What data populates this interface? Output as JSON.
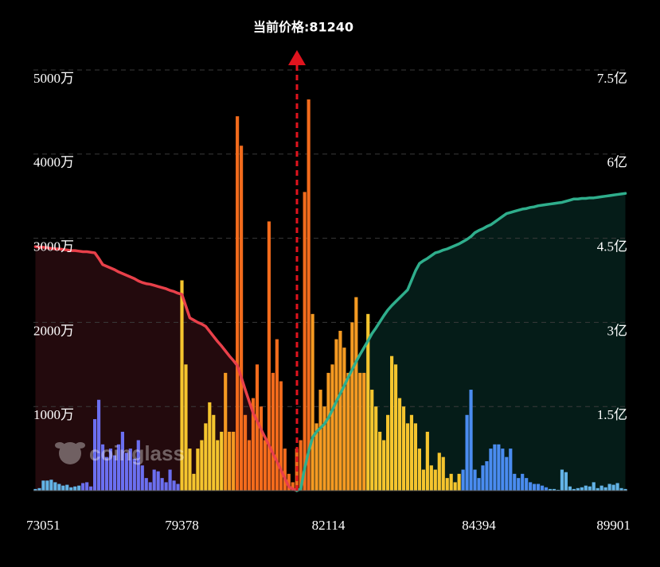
{
  "chart_data": {
    "type": "bar",
    "annotation": "当前价格:81240",
    "watermark": "coinglass",
    "grid": true,
    "ylim": [
      0,
      5000
    ],
    "yticks": [
      {
        "value": 1000,
        "label": "1000万"
      },
      {
        "value": 2000,
        "label": "2000万"
      },
      {
        "value": 3000,
        "label": "3000万"
      },
      {
        "value": 4000,
        "label": "4000万"
      },
      {
        "value": 5000,
        "label": "5000万"
      }
    ],
    "y2lim": [
      0,
      7.5
    ],
    "y2ticks": [
      {
        "value": 1.5,
        "label": "1.5亿"
      },
      {
        "value": 3,
        "label": "3亿"
      },
      {
        "value": 4.5,
        "label": "4.5亿"
      },
      {
        "value": 6,
        "label": "6亿"
      },
      {
        "value": 7.5,
        "label": "7.5亿"
      }
    ],
    "categories": [
      null,
      null,
      "73051",
      null,
      null,
      null,
      null,
      null,
      null,
      null,
      null,
      null,
      null,
      null,
      null,
      null,
      null,
      null,
      null,
      null,
      null,
      null,
      null,
      null,
      null,
      null,
      null,
      null,
      null,
      null,
      null,
      null,
      null,
      null,
      null,
      null,
      null,
      "79378",
      null,
      null,
      null,
      null,
      null,
      null,
      null,
      null,
      null,
      null,
      null,
      null,
      null,
      null,
      null,
      null,
      null,
      null,
      null,
      null,
      null,
      null,
      null,
      null,
      null,
      null,
      null,
      null,
      null,
      null,
      null,
      null,
      null,
      null,
      null,
      null,
      "82114",
      null,
      null,
      null,
      null,
      null,
      null,
      null,
      null,
      null,
      null,
      null,
      null,
      null,
      null,
      null,
      null,
      null,
      null,
      null,
      null,
      null,
      null,
      null,
      null,
      null,
      null,
      null,
      null,
      null,
      null,
      null,
      null,
      null,
      null,
      null,
      null,
      null,
      "84394",
      null,
      null,
      null,
      null,
      null,
      null,
      null,
      null,
      null,
      null,
      null,
      null,
      null,
      null,
      null,
      null,
      null,
      null,
      null,
      null,
      null,
      null,
      null,
      null,
      null,
      null,
      null,
      null,
      null,
      null,
      null,
      null,
      null,
      "89901",
      null,
      null,
      null
    ],
    "series": [
      {
        "type": "bar",
        "values": [
          20,
          30,
          120,
          120,
          130,
          100,
          80,
          60,
          70,
          40,
          50,
          60,
          90,
          100,
          50,
          850,
          1080,
          550,
          400,
          500,
          420,
          550,
          700,
          450,
          500,
          380,
          600,
          300,
          150,
          100,
          250,
          230,
          150,
          100,
          250,
          120,
          80,
          2500,
          1500,
          500,
          200,
          500,
          600,
          800,
          1050,
          900,
          600,
          700,
          1400,
          700,
          700,
          4450,
          4100,
          900,
          600,
          1100,
          1500,
          1000,
          600,
          3200,
          1400,
          1800,
          1300,
          500,
          200,
          100,
          500,
          600,
          3550,
          4650,
          2100,
          800,
          1200,
          1000,
          1400,
          1500,
          1800,
          1900,
          1700,
          1400,
          2000,
          2300,
          1400,
          1400,
          2100,
          1200,
          1000,
          700,
          600,
          900,
          1600,
          1500,
          1100,
          1000,
          800,
          900,
          800,
          500,
          250,
          700,
          300,
          250,
          450,
          400,
          150,
          200,
          100,
          200,
          250,
          900,
          1200,
          250,
          150,
          300,
          350,
          500,
          550,
          550,
          500,
          400,
          500,
          200,
          150,
          200,
          150,
          100,
          80,
          80,
          60,
          40,
          20,
          20,
          10,
          250,
          220,
          50,
          20,
          30,
          40,
          60,
          50,
          100,
          30,
          60,
          40,
          80,
          70,
          90,
          30,
          20
        ],
        "colors": [
          "#63b3e6",
          "#63b3e6",
          "#63b3e6",
          "#63b3e6",
          "#63b3e6",
          "#63b3e6",
          "#63b3e6",
          "#63b3e6",
          "#63b3e6",
          "#63b3e6",
          "#63b3e6",
          "#63b3e6",
          "#6b6ff0",
          "#6b6ff0",
          "#6b6ff0",
          "#6b6ff0",
          "#6b6ff0",
          "#6b6ff0",
          "#6b6ff0",
          "#6b6ff0",
          "#6b6ff0",
          "#6b6ff0",
          "#6b6ff0",
          "#6b6ff0",
          "#6b6ff0",
          "#6b6ff0",
          "#6b6ff0",
          "#6b6ff0",
          "#6b6ff0",
          "#6b6ff0",
          "#6b6ff0",
          "#6b6ff0",
          "#6b6ff0",
          "#6b6ff0",
          "#6b6ff0",
          "#6b6ff0",
          "#6b6ff0",
          "#f5c52e",
          "#f5c52e",
          "#f5c52e",
          "#f5c52e",
          "#f5c52e",
          "#f5c52e",
          "#f5c52e",
          "#f5c52e",
          "#f5c52e",
          "#f5c52e",
          "#f5c52e",
          "#f59a22",
          "#f59a22",
          "#f59a22",
          "#f26b1c",
          "#f26b1c",
          "#f26b1c",
          "#f26b1c",
          "#f26b1c",
          "#f26b1c",
          "#f26b1c",
          "#f26b1c",
          "#f26b1c",
          "#f26b1c",
          "#f26b1c",
          "#f26b1c",
          "#f26b1c",
          "#f26b1c",
          "#f26b1c",
          "#f26b1c",
          "#f26b1c",
          "#f26b1c",
          "#f26b1c",
          "#f59a22",
          "#f59a22",
          "#f59a22",
          "#f59a22",
          "#f59a22",
          "#f59a22",
          "#f59a22",
          "#f59a22",
          "#f59a22",
          "#f59a22",
          "#f59a22",
          "#f59a22",
          "#f59a22",
          "#f59a22",
          "#f5c52e",
          "#f5c52e",
          "#f5c52e",
          "#f5c52e",
          "#f5c52e",
          "#f5c52e",
          "#f5c52e",
          "#f5c52e",
          "#f5c52e",
          "#f5c52e",
          "#f5c52e",
          "#f5c52e",
          "#f5c52e",
          "#f5c52e",
          "#f5c52e",
          "#f5c52e",
          "#f5c52e",
          "#f5c52e",
          "#f5c52e",
          "#f5c52e",
          "#f5c52e",
          "#f5c52e",
          "#f5c52e",
          "#f5c52e",
          "#4a8cf0",
          "#4a8cf0",
          "#4a8cf0",
          "#4a8cf0",
          "#4a8cf0",
          "#4a8cf0",
          "#4a8cf0",
          "#4a8cf0",
          "#4a8cf0",
          "#4a8cf0",
          "#4a8cf0",
          "#4a8cf0",
          "#4a8cf0",
          "#4a8cf0",
          "#4a8cf0",
          "#4a8cf0",
          "#4a8cf0",
          "#4a8cf0",
          "#4a8cf0",
          "#4a8cf0",
          "#4a8cf0",
          "#4a8cf0",
          "#63b3e6",
          "#63b3e6",
          "#63b3e6",
          "#63b3e6",
          "#63b3e6",
          "#63b3e6",
          "#63b3e6",
          "#63b3e6",
          "#63b3e6",
          "#63b3e6",
          "#63b3e6",
          "#63b3e6",
          "#63b3e6",
          "#63b3e6",
          "#63b3e6",
          "#63b3e6",
          "#63b3e6",
          "#63b3e6",
          "#63b3e6",
          "#63b3e6"
        ]
      },
      {
        "type": "line",
        "axis": "y2",
        "color": "#e8404a",
        "fill": "#230a0d",
        "values": [
          4.35,
          4.34,
          4.34,
          4.33,
          4.32,
          4.31,
          4.31,
          4.3,
          4.29,
          4.28,
          4.28,
          4.27,
          4.26,
          4.26,
          4.25,
          4.24,
          4.14,
          4.03,
          4.0,
          3.97,
          3.94,
          3.9,
          3.87,
          3.84,
          3.81,
          3.78,
          3.74,
          3.71,
          3.69,
          3.68,
          3.66,
          3.64,
          3.62,
          3.6,
          3.57,
          3.55,
          3.52,
          3.5,
          3.29,
          3.08,
          3.04,
          3.0,
          2.97,
          2.93,
          2.84,
          2.75,
          2.66,
          2.58,
          2.49,
          2.4,
          2.32,
          2.23,
          2.02,
          1.8,
          1.59,
          1.38,
          1.24,
          1.09,
          0.95,
          0.81,
          0.66,
          0.52,
          0.37,
          0.22,
          0.07,
          0.03,
          0,
          null,
          null,
          null,
          null,
          null,
          null,
          null,
          null,
          null,
          null,
          null,
          null,
          null,
          null,
          null,
          null,
          null,
          null,
          null,
          null,
          null,
          null,
          null,
          null,
          null,
          null,
          null,
          null,
          null,
          null,
          null,
          null,
          null,
          null,
          null,
          null,
          null,
          null,
          null,
          null,
          null,
          null,
          null,
          null,
          null,
          null,
          null,
          null,
          null,
          null,
          null,
          null,
          null,
          null,
          null,
          null,
          null,
          null,
          null,
          null,
          null,
          null,
          null,
          null,
          null,
          null,
          null,
          null,
          null,
          null,
          null,
          null,
          null,
          null,
          null,
          null,
          null,
          null,
          null,
          null,
          null,
          null,
          null
        ]
      },
      {
        "type": "line",
        "axis": "y2",
        "color": "#2fae8c",
        "fill": "#051c18",
        "values": [
          null,
          null,
          null,
          null,
          null,
          null,
          null,
          null,
          null,
          null,
          null,
          null,
          null,
          null,
          null,
          null,
          null,
          null,
          null,
          null,
          null,
          null,
          null,
          null,
          null,
          null,
          null,
          null,
          null,
          null,
          null,
          null,
          null,
          null,
          null,
          null,
          null,
          null,
          null,
          null,
          null,
          null,
          null,
          null,
          null,
          null,
          null,
          null,
          null,
          null,
          null,
          null,
          null,
          null,
          null,
          null,
          null,
          null,
          null,
          null,
          null,
          null,
          null,
          null,
          null,
          null,
          0,
          0.03,
          0.4,
          0.7,
          0.95,
          1.05,
          1.12,
          1.19,
          1.3,
          1.44,
          1.59,
          1.73,
          1.87,
          2.02,
          2.16,
          2.3,
          2.43,
          2.55,
          2.67,
          2.8,
          2.9,
          3.01,
          3.12,
          3.22,
          3.3,
          3.37,
          3.44,
          3.51,
          3.58,
          3.75,
          3.92,
          4.05,
          4.1,
          4.14,
          4.19,
          4.24,
          4.26,
          4.29,
          4.31,
          4.34,
          4.37,
          4.4,
          4.44,
          4.48,
          4.53,
          4.6,
          4.64,
          4.67,
          4.71,
          4.74,
          4.79,
          4.84,
          4.89,
          4.94,
          4.96,
          4.98,
          5.0,
          5.02,
          5.03,
          5.05,
          5.06,
          5.08,
          5.09,
          5.1,
          5.11,
          5.12,
          5.13,
          5.14,
          5.16,
          5.18,
          5.2,
          5.2,
          5.21,
          5.21,
          5.22,
          5.22,
          5.23,
          5.24,
          5.25,
          5.26,
          5.27,
          5.28,
          5.29,
          5.3
        ]
      }
    ]
  }
}
